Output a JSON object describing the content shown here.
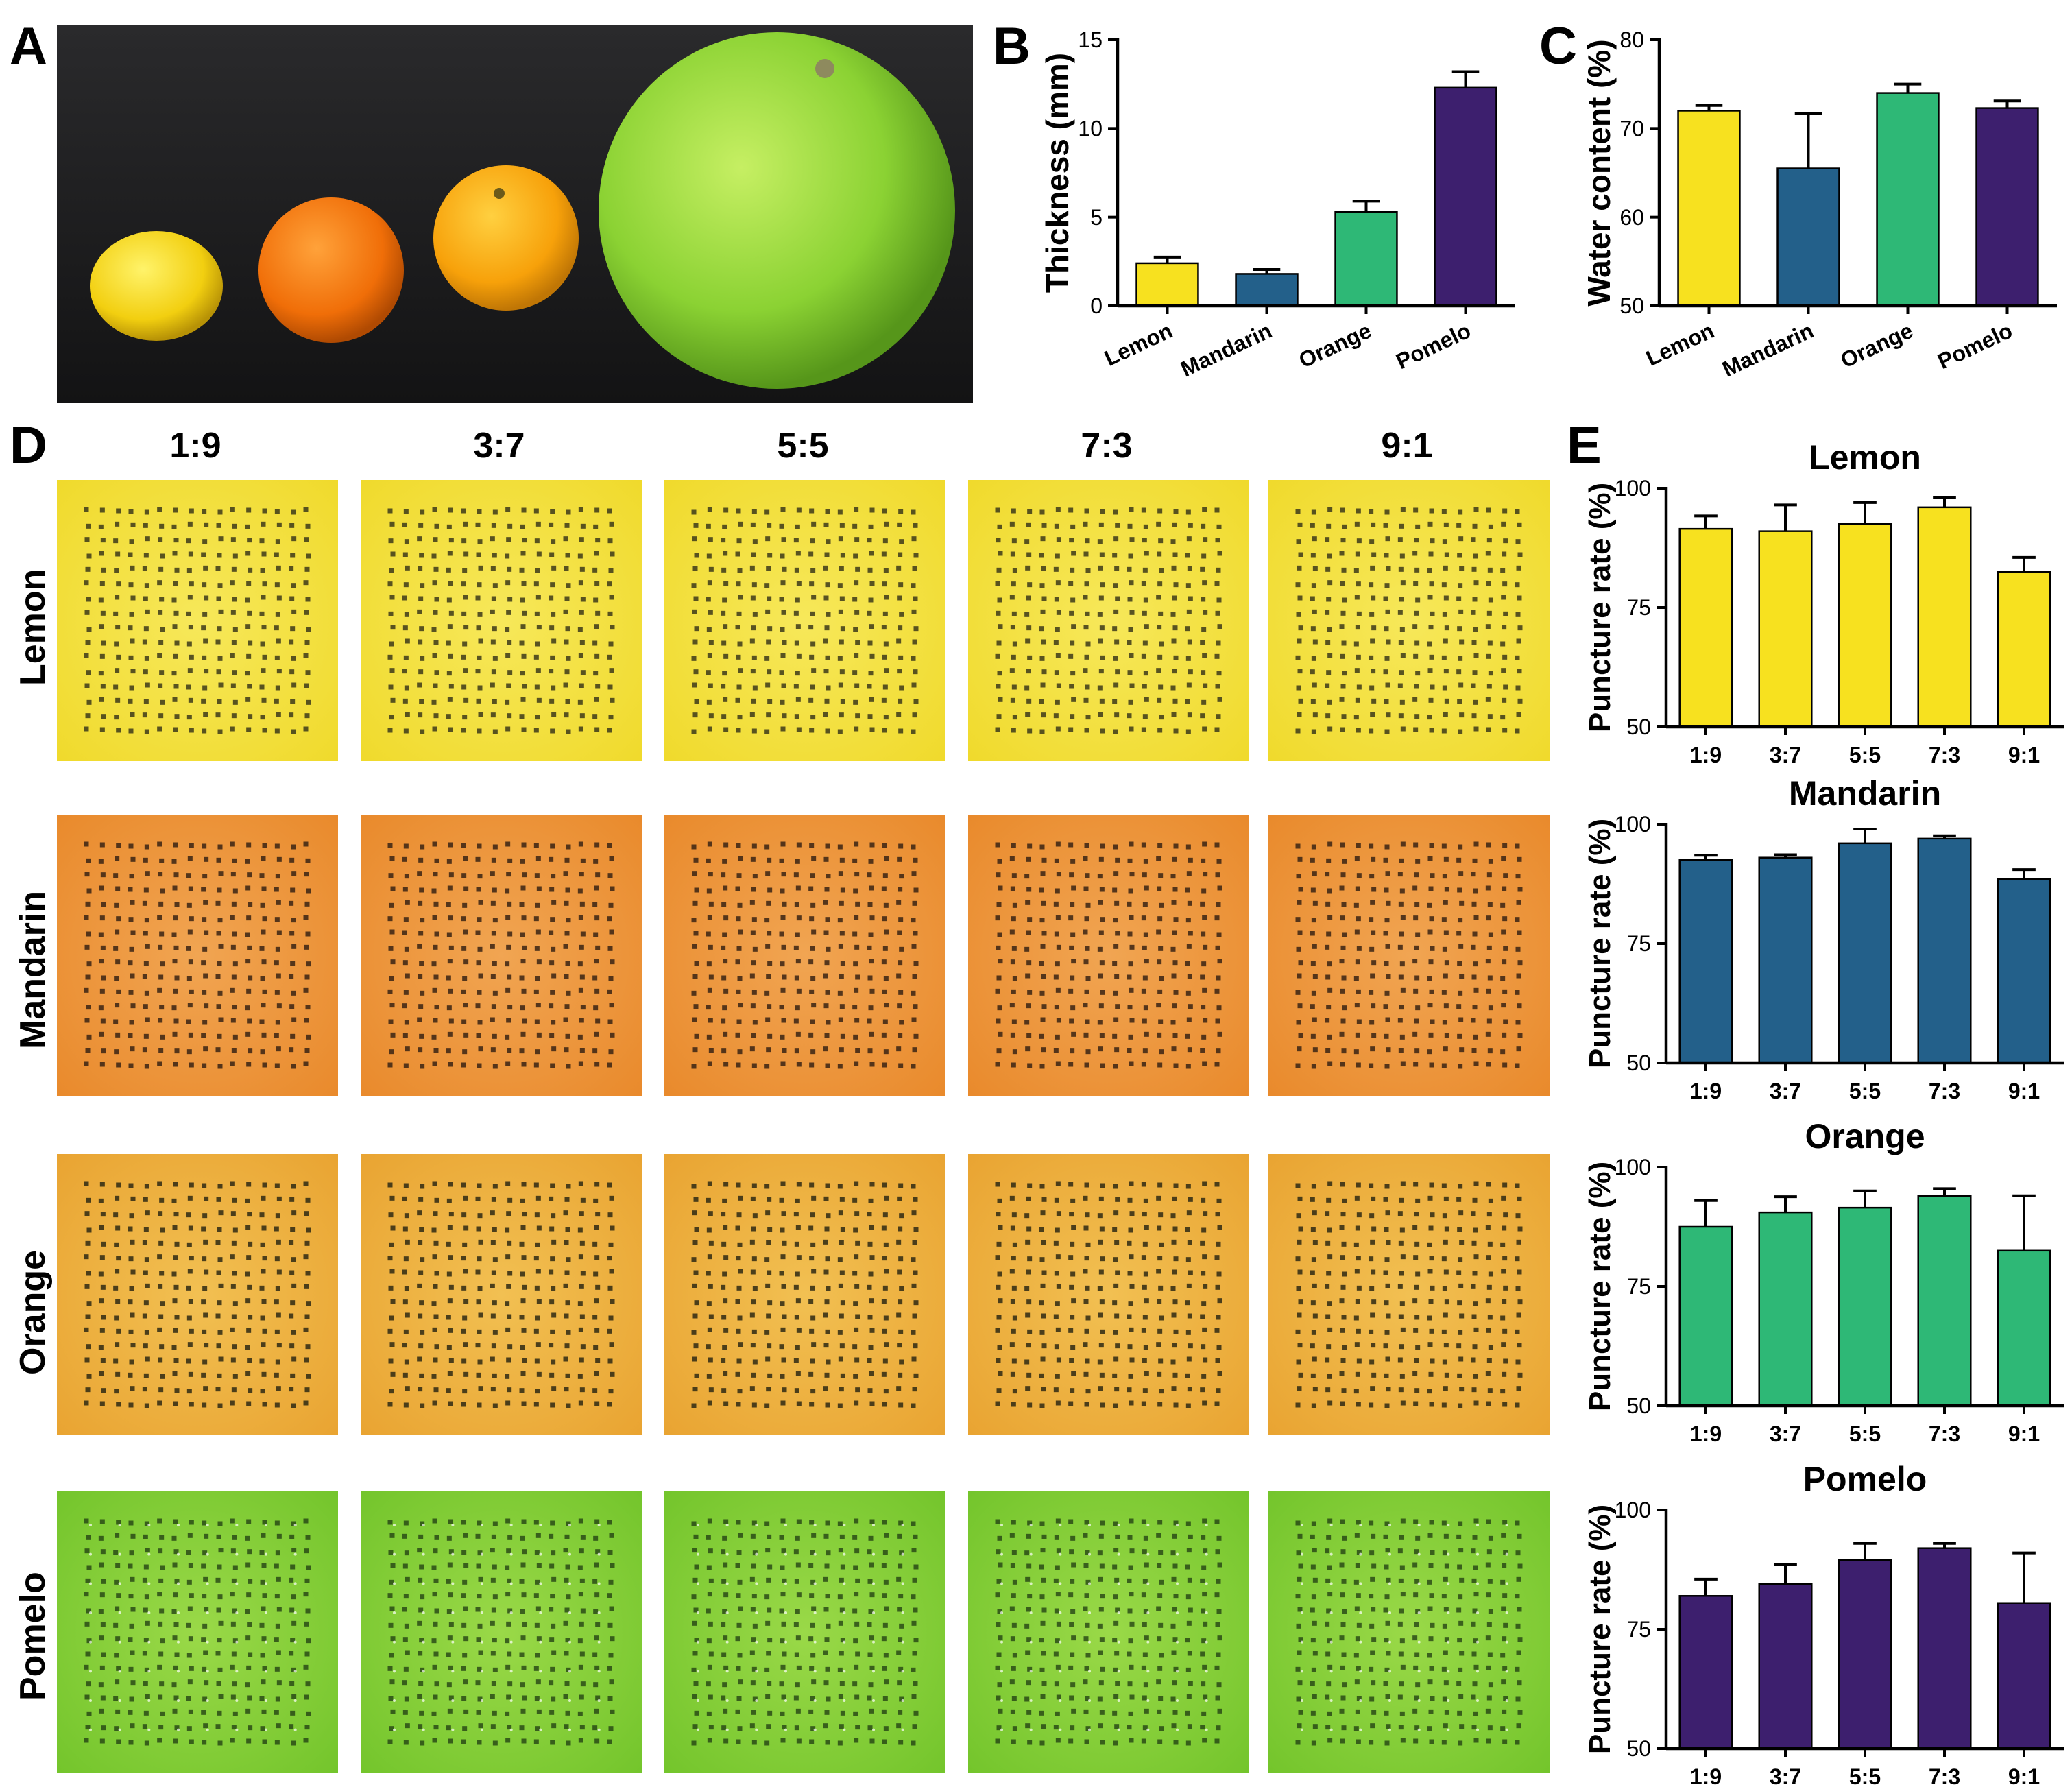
{
  "panels": {
    "a": "A",
    "b": "B",
    "c": "C",
    "d": "D",
    "e": "E"
  },
  "ratios": [
    "1:9",
    "3:7",
    "5:5",
    "7:3",
    "9:1"
  ],
  "fruits": [
    "Lemon",
    "Mandarin",
    "Orange",
    "Pomelo"
  ],
  "colors": {
    "lemon": "#f7e11f",
    "mandarin": "#23608a",
    "orange": "#2eb876",
    "pomelo": "#3d1f6e"
  },
  "chart_data": [
    {
      "id": "B",
      "type": "bar",
      "categories": [
        "Lemon",
        "Mandarin",
        "Orange",
        "Pomelo"
      ],
      "values": [
        2.4,
        1.8,
        5.3,
        12.3
      ],
      "errors": [
        0.35,
        0.25,
        0.6,
        0.9
      ],
      "ylabel": "Thickness (mm)",
      "ylim": [
        0,
        15
      ],
      "yticks": [
        0,
        5,
        10,
        15
      ],
      "colors": [
        "#f7e11f",
        "#23608a",
        "#2eb876",
        "#3d1f6e"
      ]
    },
    {
      "id": "C",
      "type": "bar",
      "categories": [
        "Lemon",
        "Mandarin",
        "Orange",
        "Pomelo"
      ],
      "values": [
        72,
        65.5,
        74,
        72.3
      ],
      "errors": [
        0.6,
        6.2,
        1.0,
        0.8
      ],
      "ylabel": "Water content (%)",
      "ylim": [
        50,
        80
      ],
      "yticks": [
        50,
        60,
        70,
        80
      ],
      "colors": [
        "#f7e11f",
        "#23608a",
        "#2eb876",
        "#3d1f6e"
      ]
    },
    {
      "id": "E-Lemon",
      "type": "bar",
      "title": "Lemon",
      "categories": [
        "1:9",
        "3:7",
        "5:5",
        "7:3",
        "9:1"
      ],
      "values": [
        91.5,
        91,
        92.5,
        96,
        82.5
      ],
      "errors": [
        2.7,
        5.5,
        4.5,
        2.0,
        3.0
      ],
      "ylabel": "Puncture rate (%)",
      "ylim": [
        50,
        100
      ],
      "yticks": [
        50,
        75,
        100
      ],
      "color": "#f7e11f"
    },
    {
      "id": "E-Mandarin",
      "type": "bar",
      "title": "Mandarin",
      "categories": [
        "1:9",
        "3:7",
        "5:5",
        "7:3",
        "9:1"
      ],
      "values": [
        92.5,
        93,
        96,
        97,
        88.5
      ],
      "errors": [
        1.0,
        0.6,
        3.0,
        0.6,
        2.0
      ],
      "ylabel": "Puncture rate (%)",
      "ylim": [
        50,
        100
      ],
      "yticks": [
        50,
        75,
        100
      ],
      "color": "#23608a"
    },
    {
      "id": "E-Orange",
      "type": "bar",
      "title": "Orange",
      "categories": [
        "1:9",
        "3:7",
        "5:5",
        "7:3",
        "9:1"
      ],
      "values": [
        87.5,
        90.5,
        91.5,
        94,
        82.5
      ],
      "errors": [
        5.5,
        3.3,
        3.5,
        1.5,
        11.5
      ],
      "ylabel": "Puncture rate (%)",
      "ylim": [
        50,
        100
      ],
      "yticks": [
        50,
        75,
        100
      ],
      "color": "#2eb876"
    },
    {
      "id": "E-Pomelo",
      "type": "bar",
      "title": "Pomelo",
      "categories": [
        "1:9",
        "3:7",
        "5:5",
        "7:3",
        "9:1"
      ],
      "values": [
        82,
        84.5,
        89.5,
        92,
        80.5
      ],
      "errors": [
        3.5,
        4.0,
        3.5,
        1.0,
        10.5
      ],
      "ylabel": "Puncture rate (%)",
      "ylim": [
        50,
        100
      ],
      "yticks": [
        50,
        75,
        100
      ],
      "color": "#3d1f6e"
    }
  ]
}
